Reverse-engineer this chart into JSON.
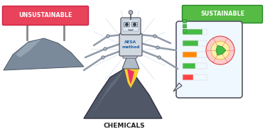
{
  "bg_color": "#ffffff",
  "unsustainable_sign_color": "#e8435a",
  "sustainable_sign_color": "#55bb44",
  "sign_text_color": "#ffffff",
  "unsustainable_text": "UNSUSTAINABLE",
  "sustainable_text": "SUSTAINABLE",
  "chemicals_text": "CHEMICALS",
  "aesa_text": "AESA\nmethod",
  "robot_light": "#d0d8e0",
  "robot_mid": "#b0bcc8",
  "robot_outline": "#555566",
  "flame_yellow": "#f8d030",
  "flame_pink": "#ee3366",
  "heap_mid": "#7a8a9a",
  "heap_dark": "#505868",
  "heap_light": "#a0b0be",
  "sign_post_color": "#888888",
  "arm_color": "#909aaa",
  "tablet_bg": "#f0f8ff",
  "tablet_border": "#555566",
  "figsize": [
    3.73,
    1.89
  ],
  "dpi": 100
}
